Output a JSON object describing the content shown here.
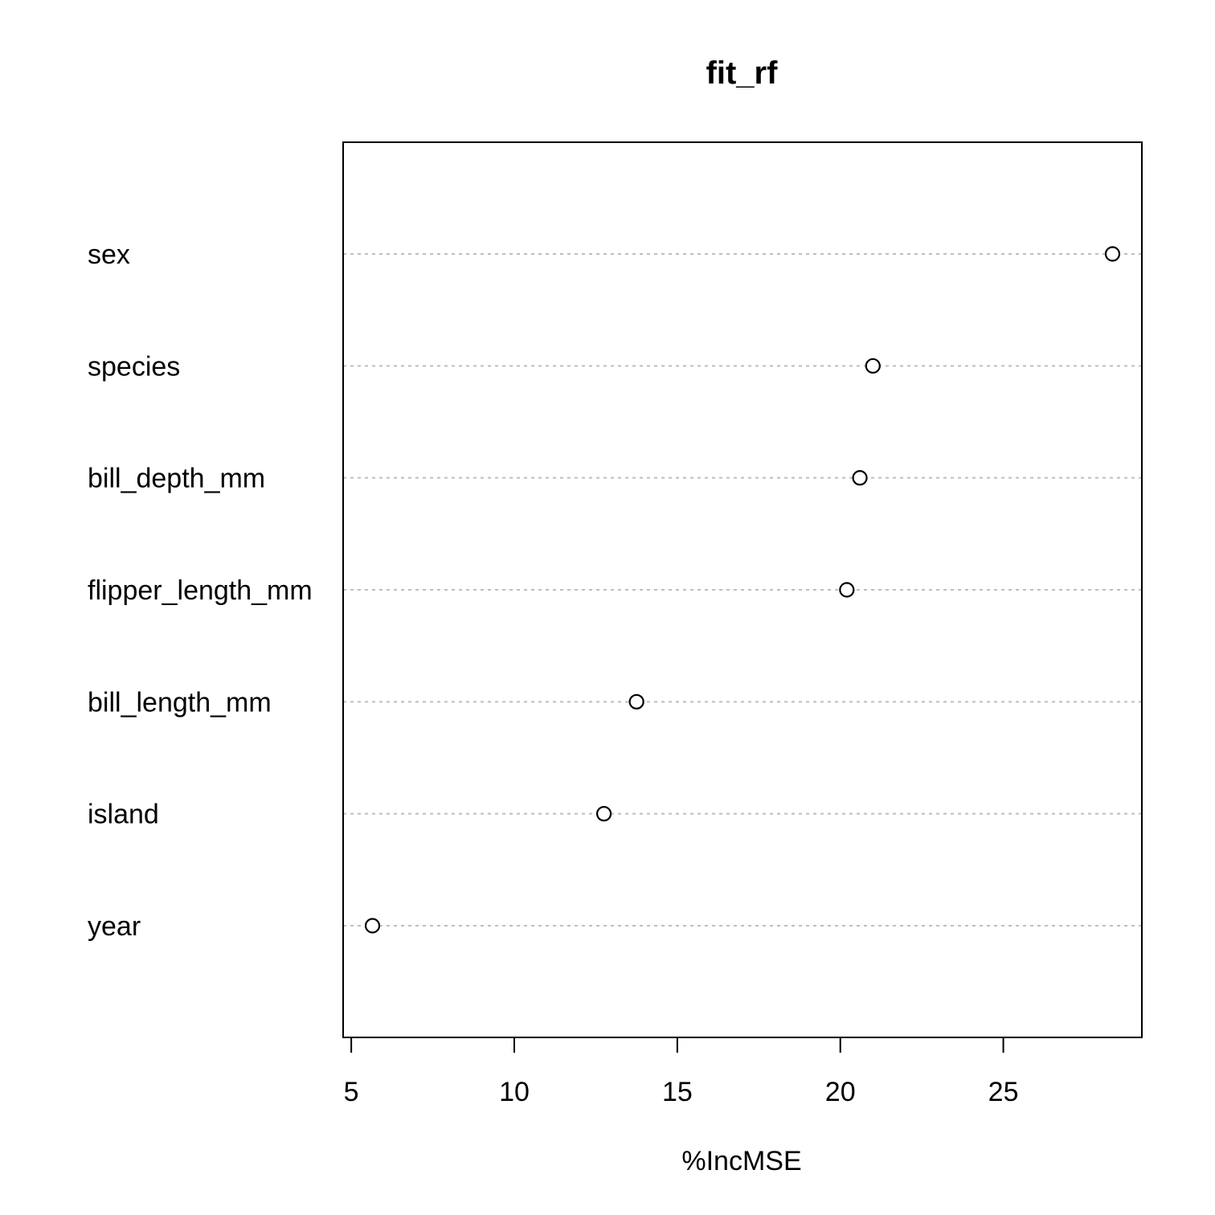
{
  "chart_data": {
    "type": "scatter",
    "variant": "dotchart",
    "title": "fit_rf",
    "xlabel": "%IncMSE",
    "ylabel": "",
    "categories": [
      "sex",
      "species",
      "bill_depth_mm",
      "flipper_length_mm",
      "bill_length_mm",
      "island",
      "year"
    ],
    "values": [
      28.35,
      21.0,
      20.6,
      20.2,
      13.75,
      12.75,
      5.65
    ],
    "xlim": [
      4.75,
      29.25
    ],
    "x_ticks": [
      5,
      10,
      15,
      20,
      25
    ],
    "x_tick_labels": [
      "5",
      "10",
      "15",
      "20",
      "25"
    ],
    "grid": "dotted horizontal lines",
    "legend": "none",
    "colors": {
      "point_stroke": "#000000",
      "gridline": "#bebebe",
      "frame": "#000000"
    }
  }
}
